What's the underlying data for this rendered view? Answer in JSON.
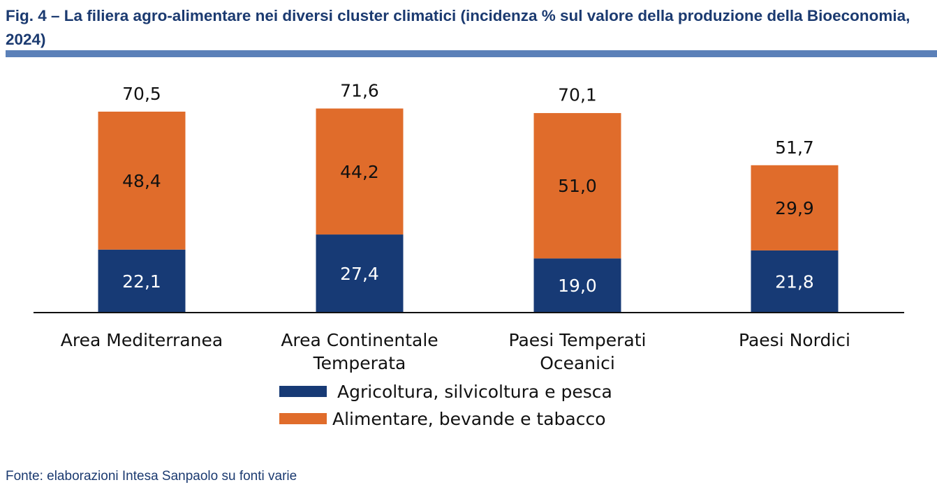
{
  "title": "Fig. 4 – La filiera agro-alimentare nei diversi cluster climatici (incidenza % sul valore della produzione della Bioeconomia, 2024)",
  "source": "Fonte: elaborazioni Intesa Sanpaolo su fonti varie",
  "chart_data": {
    "type": "bar",
    "stacked": true,
    "categories": [
      [
        "Area Mediterranea"
      ],
      [
        "Area Continentale",
        "Temperata"
      ],
      [
        "Paesi Temperati",
        "Oceanici"
      ],
      [
        "Paesi Nordici"
      ]
    ],
    "series": [
      {
        "name": "Agricoltura, silvicoltura e pesca",
        "values": [
          22.1,
          27.4,
          19.0,
          21.8
        ],
        "labels": [
          "22,1",
          "27,4",
          "19,0",
          "21,8"
        ],
        "color": "#173a75"
      },
      {
        "name": "Alimentare, bevande e tabacco",
        "values": [
          48.4,
          44.2,
          51.0,
          29.9
        ],
        "labels": [
          "48,4",
          "44,2",
          "51,0",
          "29,9"
        ],
        "color": "#e06c2b"
      }
    ],
    "totals": [
      "70,5",
      "71,6",
      "70,1",
      "51,7"
    ],
    "total_values": [
      70.5,
      71.6,
      70.1,
      51.7
    ],
    "ylim": [
      0,
      80
    ],
    "grid": false,
    "legend_placement": "bottom-center"
  }
}
